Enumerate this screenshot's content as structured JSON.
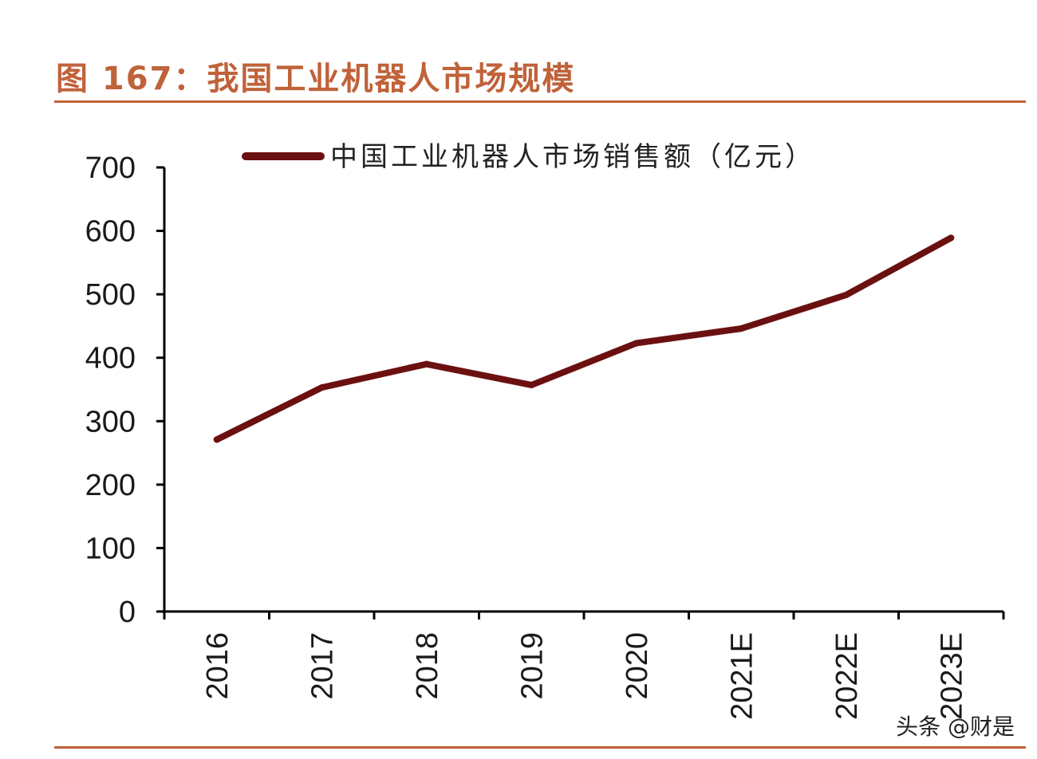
{
  "figure": {
    "title": "图 167：我国工业机器人市场规模"
  },
  "watermark": "头条 @财是",
  "chart_data": {
    "type": "line",
    "title": "图 167：我国工业机器人市场规模",
    "categories": [
      "2016",
      "2017",
      "2018",
      "2019",
      "2020",
      "2021E",
      "2022E",
      "2023E"
    ],
    "series": [
      {
        "name": "中国工业机器人市场销售额（亿元）",
        "values": [
          271,
          353,
          390,
          357,
          423,
          446,
          499,
          589
        ],
        "color": "#6B1010"
      }
    ],
    "xlabel": "",
    "ylabel": "",
    "ylim": [
      0,
      700
    ],
    "yticks": [
      0,
      100,
      200,
      300,
      400,
      500,
      600,
      700
    ],
    "legend_position": "top",
    "grid": false
  },
  "colors": {
    "accent": "#C0623A",
    "series": "#6B1010"
  }
}
